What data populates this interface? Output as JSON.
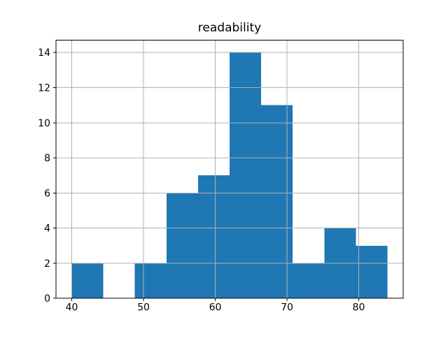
{
  "figure": {
    "background": "#ffffff"
  },
  "chart_data": {
    "type": "bar",
    "subtype": "histogram",
    "title": "readability",
    "xlabel": "",
    "ylabel": "",
    "bin_edges": [
      40.0,
      44.4,
      48.8,
      53.2,
      57.6,
      62.0,
      66.4,
      70.8,
      75.2,
      79.6,
      84.0
    ],
    "counts": [
      2,
      0,
      2,
      6,
      7,
      14,
      11,
      2,
      4,
      3
    ],
    "x_ticks": [
      40,
      50,
      60,
      70,
      80
    ],
    "x_tick_labels": [
      "40",
      "50",
      "60",
      "70",
      "80"
    ],
    "y_ticks": [
      0,
      2,
      4,
      6,
      8,
      10,
      12,
      14
    ],
    "y_tick_labels": [
      "0",
      "2",
      "4",
      "6",
      "8",
      "10",
      "12",
      "14"
    ],
    "xlim": [
      37.8,
      86.2
    ],
    "ylim": [
      0,
      14.7
    ],
    "grid": true,
    "legend": "none",
    "colors": {
      "bar": "#1f77b4",
      "grid": "#b0b0b0",
      "spine": "#000000",
      "background": "#ffffff"
    }
  }
}
